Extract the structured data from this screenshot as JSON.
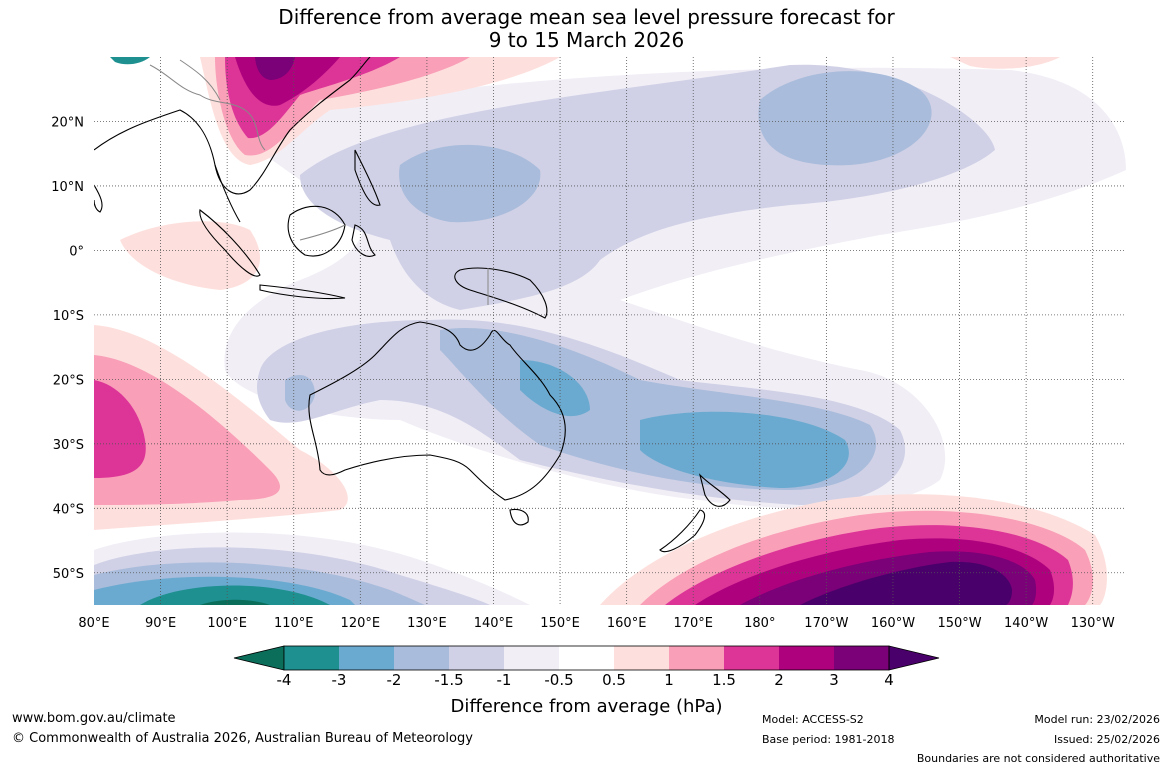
{
  "title": {
    "line1": "Difference from average mean sea level pressure forecast for",
    "line2": "9 to 15 March 2026"
  },
  "map": {
    "lon_labels": [
      "80°E",
      "90°E",
      "100°E",
      "110°E",
      "120°E",
      "130°E",
      "140°E",
      "150°E",
      "160°E",
      "170°E",
      "180°",
      "170°W",
      "160°W",
      "150°W",
      "140°W",
      "130°W"
    ],
    "lat_labels": [
      "20°N",
      "10°N",
      "0°",
      "10°S",
      "20°S",
      "30°S",
      "40°S",
      "50°S"
    ],
    "lon_range": [
      80,
      235
    ],
    "lat_range": [
      -55,
      30
    ],
    "features": [
      {
        "name": "high-southern-ocean",
        "label": "High pressure anomaly south-east of New Zealand",
        "max_hpa": 4
      },
      {
        "name": "high-east-asia",
        "label": "High pressure anomaly over southern China",
        "max_hpa": 3
      },
      {
        "name": "high-indian-ocean",
        "label": "High pressure anomaly west of Australia",
        "max_hpa": 2
      },
      {
        "name": "low-tasman",
        "label": "Low pressure anomaly Tasman Sea",
        "min_hpa": -3
      },
      {
        "name": "low-southwest",
        "label": "Low pressure anomaly south-west of Australia",
        "min_hpa": -4
      },
      {
        "name": "low-north-pacific",
        "label": "Low pressure anomaly central North Pacific",
        "min_hpa": -1.5
      }
    ]
  },
  "colorbar": {
    "title": "Difference from average (hPa)",
    "labels": [
      "-4",
      "-3",
      "-2",
      "-1.5",
      "-1",
      "-0.5",
      "0.5",
      "1",
      "1.5",
      "2",
      "3",
      "4"
    ],
    "colors": [
      "#0b6e5a",
      "#1e9090",
      "#6aaad0",
      "#a9bcdb",
      "#d0d1e6",
      "#f1eef6",
      "#ffffff",
      "#fde0dd",
      "#f99fb8",
      "#dd3497",
      "#ae017e",
      "#7a0177",
      "#49006a"
    ]
  },
  "footer": {
    "website": "www.bom.gov.au/climate",
    "copyright": "© Commonwealth of Australia 2026, Australian Bureau of Meteorology",
    "model": "Model: ACCESS-S2",
    "base_period": "Base period: 1981-2018",
    "model_run": "Model run: 23/02/2026",
    "issued": "Issued: 25/02/2026",
    "disclaimer": "Boundaries are not considered authoritative"
  }
}
